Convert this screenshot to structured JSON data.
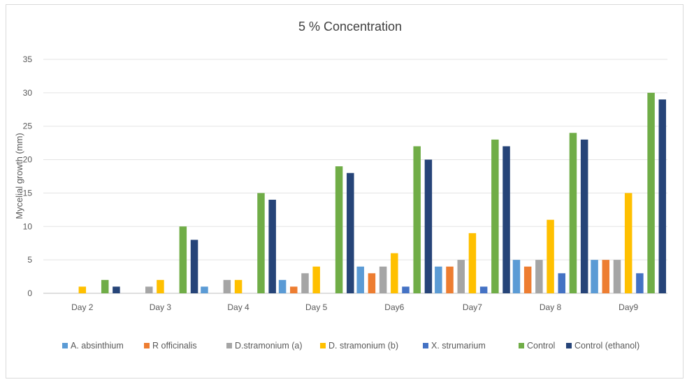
{
  "chart_data": {
    "type": "bar",
    "title": "5 % Concentration",
    "ylabel": "Mycelial growth (mm)",
    "xlabel": "",
    "ylim": [
      0,
      35
    ],
    "yticks": [
      0,
      5,
      10,
      15,
      20,
      25,
      30,
      35
    ],
    "grid": true,
    "legend_position": "bottom",
    "categories": [
      "Day 2",
      "Day 3",
      "Day 4",
      "Day 5",
      "Day6",
      "Day7",
      "Day 8",
      "Day9"
    ],
    "series": [
      {
        "name": "A. absinthium",
        "color": "#5b9bd5",
        "values": [
          0,
          0,
          1,
          2,
          4,
          4,
          5,
          5
        ]
      },
      {
        "name": "R officinalis",
        "color": "#ed7d31",
        "values": [
          0,
          0,
          0,
          1,
          3,
          4,
          4,
          5
        ]
      },
      {
        "name": "D.stramonium (a)",
        "color": "#a5a5a5",
        "values": [
          0,
          1,
          2,
          3,
          4,
          5,
          5,
          5
        ]
      },
      {
        "name": "D. stramonium (b)",
        "color": "#ffc000",
        "values": [
          1,
          2,
          2,
          4,
          6,
          9,
          11,
          15
        ]
      },
      {
        "name": "X. strumarium",
        "color": "#4472c4",
        "values": [
          0,
          0,
          0,
          0,
          1,
          1,
          3,
          3
        ]
      },
      {
        "name": "Control",
        "color": "#70ad47",
        "values": [
          2,
          10,
          15,
          19,
          22,
          23,
          24,
          30
        ]
      },
      {
        "name": "Control (ethanol)",
        "color": "#264478",
        "values": [
          1,
          8,
          14,
          18,
          20,
          22,
          23,
          29
        ]
      }
    ]
  }
}
